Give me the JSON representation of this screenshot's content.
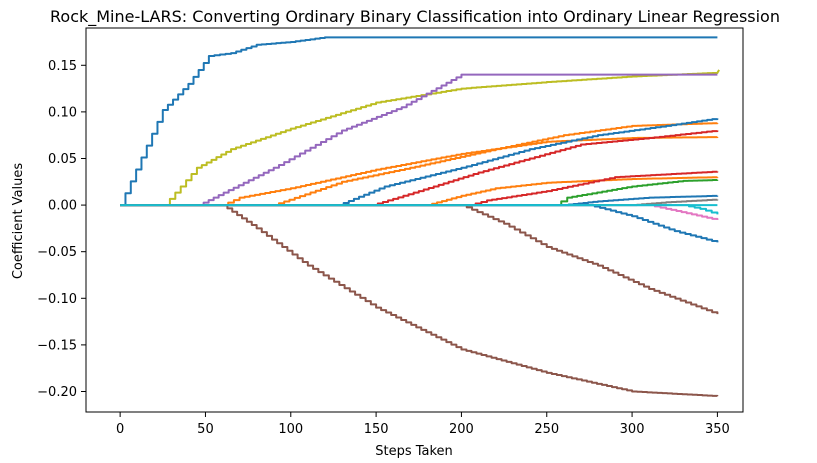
{
  "chart_data": {
    "type": "line",
    "title": "Rock_Mine-LARS: Converting Ordinary Binary Classification into Ordinary Linear Regression",
    "xlabel": "Steps Taken",
    "ylabel": "Coefficient Values",
    "xlim": [
      -20,
      365
    ],
    "ylim": [
      -0.222,
      0.19
    ],
    "xticks": [
      0,
      50,
      100,
      150,
      200,
      250,
      300,
      350
    ],
    "xtick_labels": [
      "0",
      "50",
      "100",
      "150",
      "200",
      "250",
      "300",
      "350"
    ],
    "yticks": [
      0.15,
      0.1,
      0.05,
      0.0,
      -0.05,
      -0.1,
      -0.15,
      -0.2
    ],
    "ytick_labels": [
      "0.15",
      "0.10",
      "0.05",
      "0.00",
      "−0.05",
      "−0.10",
      "−0.15",
      "−0.20"
    ],
    "grid": false,
    "series": [
      {
        "color": "#1f77b4",
        "points": [
          [
            0,
            0
          ],
          [
            25,
            0.102
          ],
          [
            40,
            0.13
          ],
          [
            52,
            0.16
          ],
          [
            65,
            0.163
          ],
          [
            80,
            0.172
          ],
          [
            100,
            0.175
          ],
          [
            120,
            0.18
          ],
          [
            350,
            0.18
          ]
        ]
      },
      {
        "color": "#bcbd22",
        "points": [
          [
            0,
            0
          ],
          [
            26,
            0
          ],
          [
            45,
            0.04
          ],
          [
            65,
            0.06
          ],
          [
            100,
            0.082
          ],
          [
            150,
            0.11
          ],
          [
            200,
            0.125
          ],
          [
            250,
            0.132
          ],
          [
            300,
            0.138
          ],
          [
            350,
            0.142
          ],
          [
            351,
            0.145
          ]
        ]
      },
      {
        "color": "#9467bd",
        "points": [
          [
            0,
            0
          ],
          [
            46,
            0
          ],
          [
            90,
            0.04
          ],
          [
            130,
            0.08
          ],
          [
            165,
            0.105
          ],
          [
            200,
            0.14
          ],
          [
            350,
            0.14
          ]
        ]
      },
      {
        "color": "#ff7f0e",
        "points": [
          [
            0,
            0
          ],
          [
            60,
            0
          ],
          [
            70,
            0.008
          ],
          [
            100,
            0.018
          ],
          [
            150,
            0.038
          ],
          [
            200,
            0.055
          ],
          [
            250,
            0.068
          ],
          [
            300,
            0.072
          ],
          [
            350,
            0.073
          ]
        ]
      },
      {
        "color": "#ff7f0e",
        "points": [
          [
            0,
            0
          ],
          [
            90,
            0
          ],
          [
            130,
            0.025
          ],
          [
            170,
            0.04
          ],
          [
            220,
            0.06
          ],
          [
            260,
            0.075
          ],
          [
            300,
            0.085
          ],
          [
            350,
            0.088
          ]
        ]
      },
      {
        "color": "#1f77b4",
        "points": [
          [
            0,
            0
          ],
          [
            128,
            0
          ],
          [
            155,
            0.02
          ],
          [
            200,
            0.04
          ],
          [
            240,
            0.06
          ],
          [
            280,
            0.075
          ],
          [
            320,
            0.085
          ],
          [
            350,
            0.093
          ]
        ]
      },
      {
        "color": "#d62728",
        "points": [
          [
            0,
            0
          ],
          [
            148,
            0
          ],
          [
            175,
            0.015
          ],
          [
            210,
            0.035
          ],
          [
            240,
            0.05
          ],
          [
            270,
            0.065
          ],
          [
            310,
            0.072
          ],
          [
            350,
            0.08
          ]
        ]
      },
      {
        "color": "#ff7f0e",
        "points": [
          [
            0,
            0
          ],
          [
            180,
            0
          ],
          [
            200,
            0.01
          ],
          [
            220,
            0.018
          ],
          [
            250,
            0.024
          ],
          [
            300,
            0.028
          ],
          [
            350,
            0.03
          ]
        ]
      },
      {
        "color": "#d62728",
        "points": [
          [
            0,
            0
          ],
          [
            205,
            0
          ],
          [
            215,
            0.005
          ],
          [
            250,
            0.015
          ],
          [
            290,
            0.03
          ],
          [
            350,
            0.036
          ]
        ]
      },
      {
        "color": "#2ca02c",
        "points": [
          [
            0,
            0
          ],
          [
            255,
            0
          ],
          [
            262,
            0.008
          ],
          [
            300,
            0.02
          ],
          [
            330,
            0.026
          ],
          [
            350,
            0.027
          ]
        ]
      },
      {
        "color": "#1f77b4",
        "points": [
          [
            0,
            0
          ],
          [
            260,
            0
          ],
          [
            280,
            0.004
          ],
          [
            310,
            0.008
          ],
          [
            350,
            0.01
          ]
        ]
      },
      {
        "color": "#e377c2",
        "points": [
          [
            0,
            0
          ],
          [
            310,
            0
          ],
          [
            320,
            -0.004
          ],
          [
            335,
            -0.01
          ],
          [
            350,
            -0.016
          ]
        ]
      },
      {
        "color": "#17becf",
        "points": [
          [
            0,
            0
          ],
          [
            330,
            0
          ],
          [
            340,
            -0.004
          ],
          [
            350,
            -0.01
          ]
        ]
      },
      {
        "color": "#7f7f7f",
        "points": [
          [
            0,
            0
          ],
          [
            300,
            0
          ],
          [
            320,
            0.003
          ],
          [
            350,
            0.006
          ]
        ]
      },
      {
        "color": "#1f77b4",
        "points": [
          [
            0,
            0
          ],
          [
            275,
            0
          ],
          [
            300,
            -0.012
          ],
          [
            325,
            -0.028
          ],
          [
            350,
            -0.04
          ]
        ]
      },
      {
        "color": "#8c564b",
        "points": [
          [
            0,
            0
          ],
          [
            200,
            0
          ],
          [
            225,
            -0.02
          ],
          [
            250,
            -0.045
          ],
          [
            280,
            -0.065
          ],
          [
            310,
            -0.09
          ],
          [
            350,
            -0.117
          ]
        ]
      },
      {
        "color": "#8c564b",
        "points": [
          [
            0,
            0
          ],
          [
            60,
            0
          ],
          [
            80,
            -0.025
          ],
          [
            110,
            -0.065
          ],
          [
            150,
            -0.11
          ],
          [
            200,
            -0.155
          ],
          [
            250,
            -0.18
          ],
          [
            300,
            -0.2
          ],
          [
            350,
            -0.205
          ]
        ]
      },
      {
        "color": "#17becf",
        "points": [
          [
            0,
            0
          ],
          [
            350,
            0
          ]
        ]
      }
    ]
  }
}
